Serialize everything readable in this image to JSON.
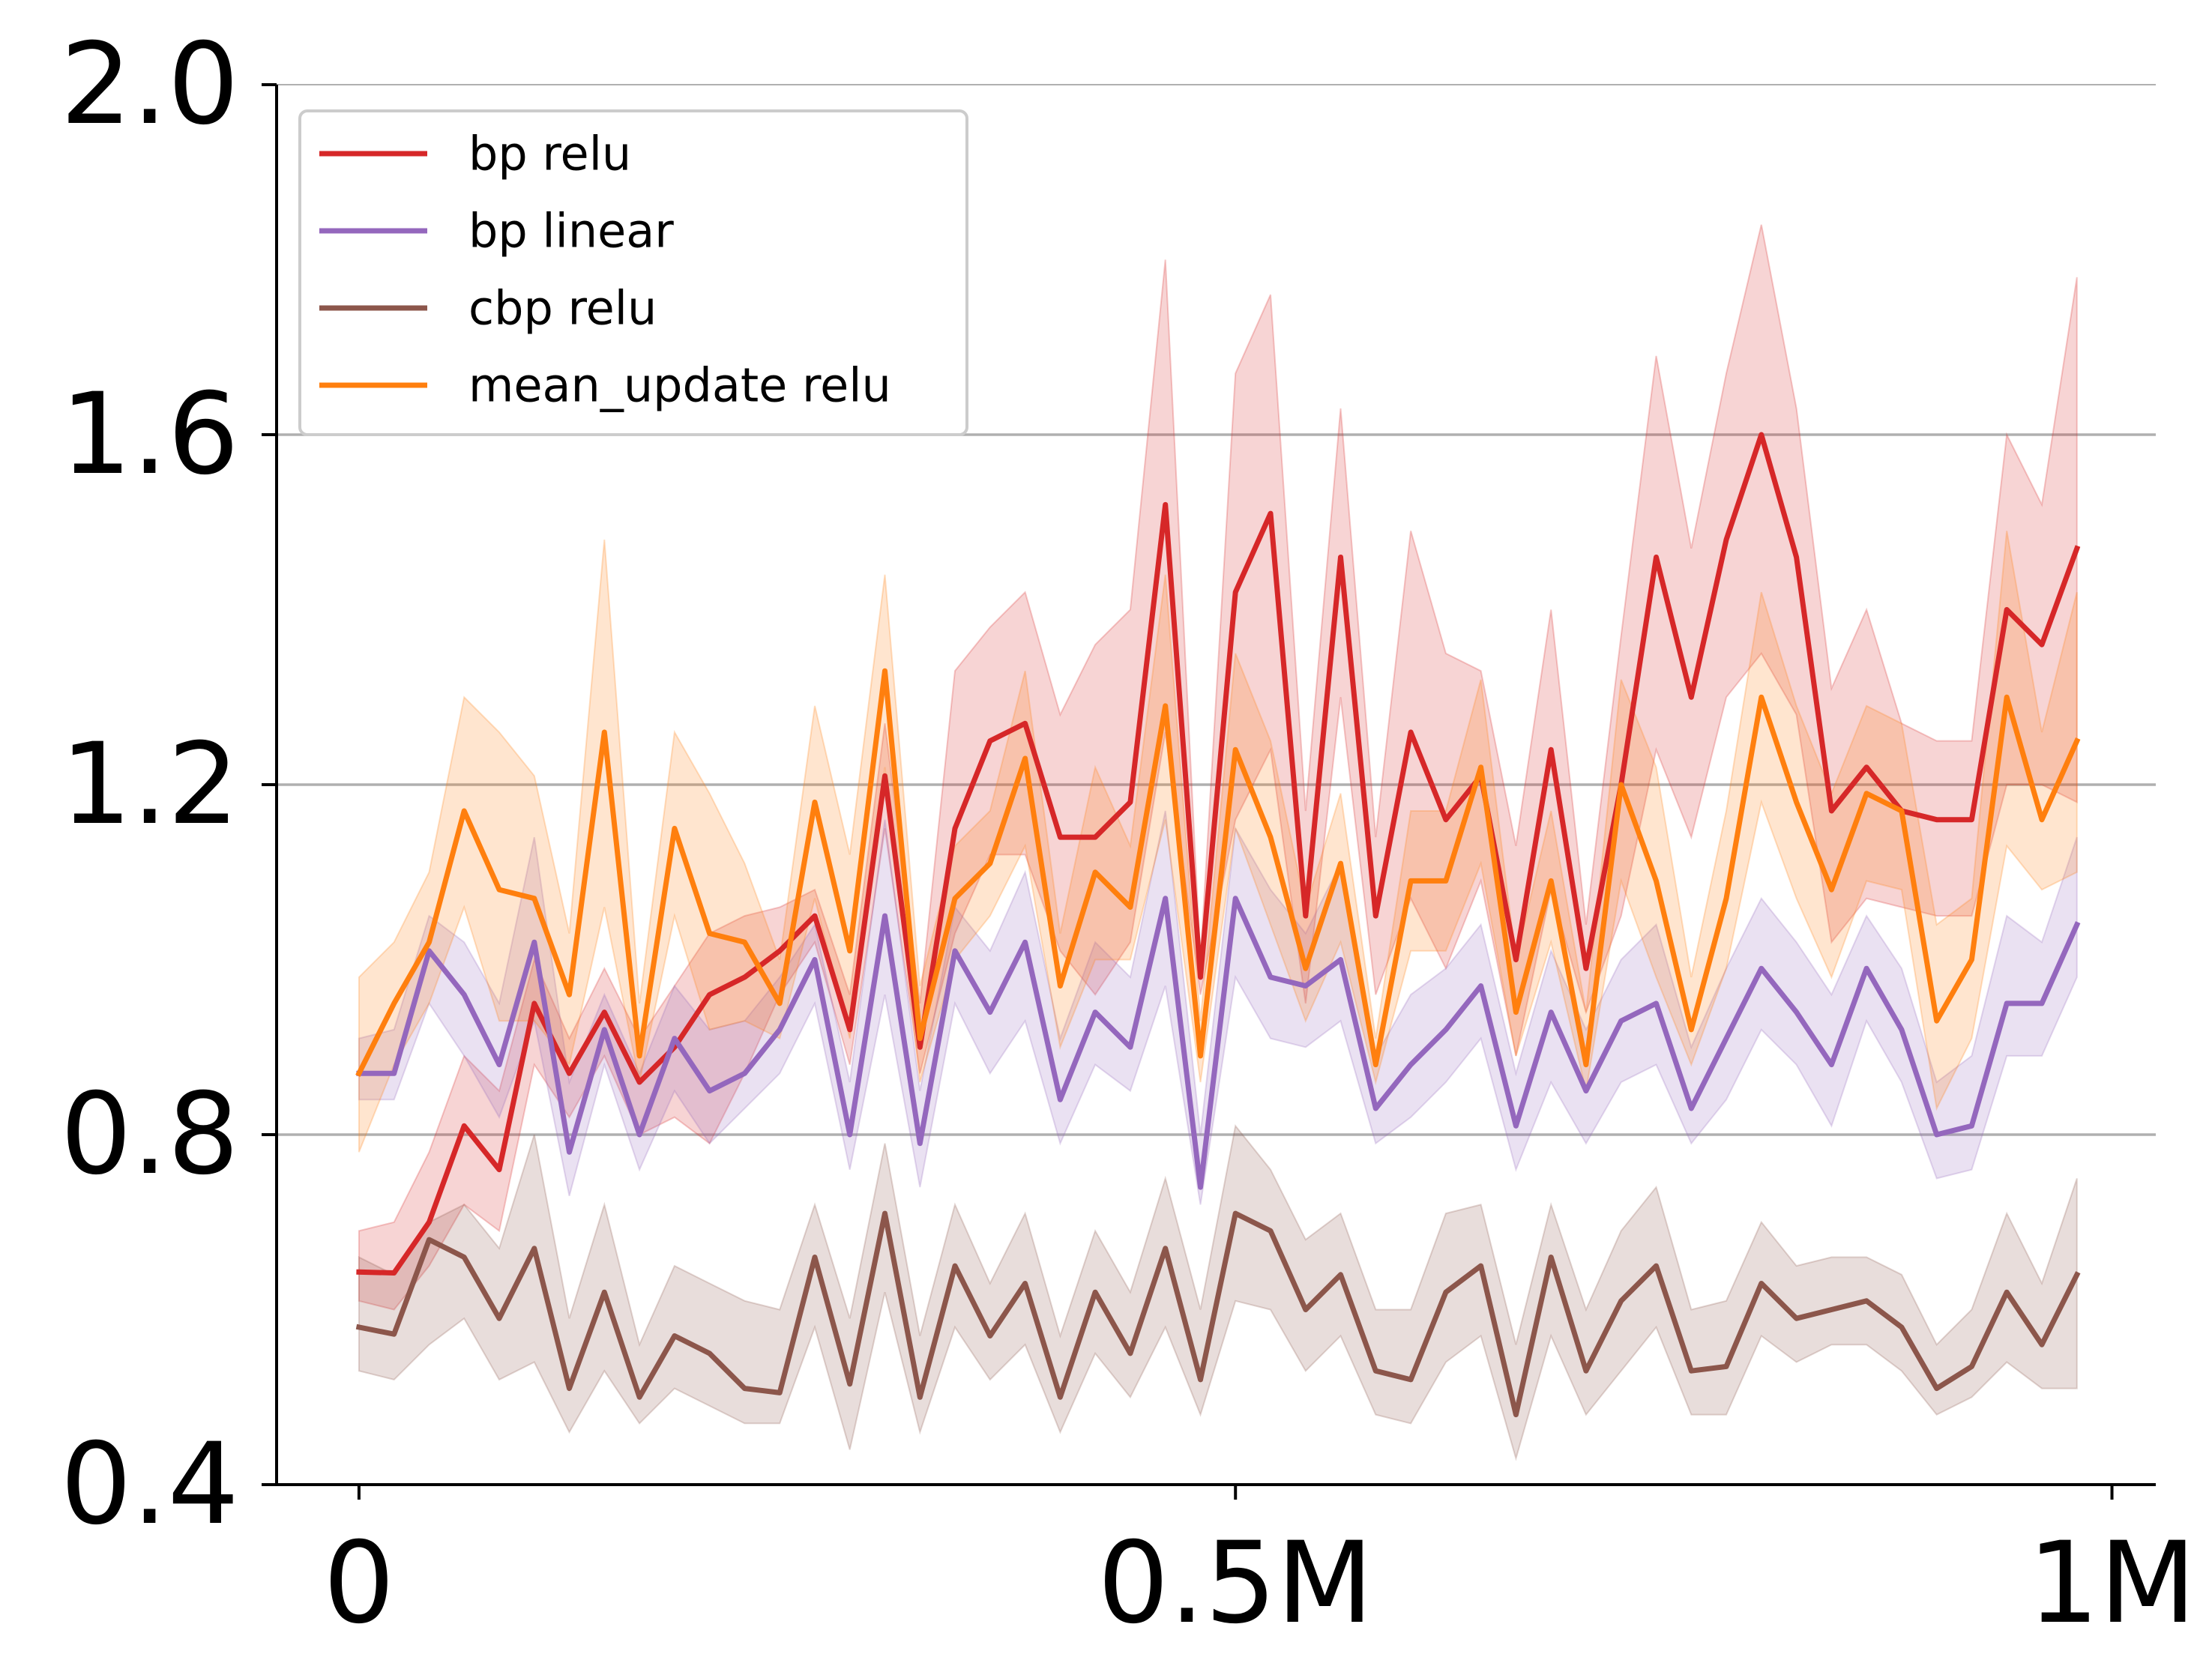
{
  "chart_data": {
    "type": "line",
    "title": "",
    "xlabel": "",
    "ylabel": "",
    "xlim": [
      -47000,
      1025000
    ],
    "ylim": [
      0.4,
      2.0
    ],
    "grid": "horizontal",
    "legend_placement": "upper-left",
    "x_ticks": [
      {
        "value": 0,
        "label": "0"
      },
      {
        "value": 500000,
        "label": "0.5M"
      },
      {
        "value": 1000000,
        "label": "1M"
      }
    ],
    "y_ticks": [
      {
        "value": 0.4,
        "label": "0.4"
      },
      {
        "value": 0.8,
        "label": "0.8"
      },
      {
        "value": 1.2,
        "label": "1.2"
      },
      {
        "value": 1.6,
        "label": "1.6"
      },
      {
        "value": 2.0,
        "label": "2.0"
      }
    ],
    "x": [
      0,
      20000,
      40000,
      60000,
      80000,
      100000,
      120000,
      140000,
      160000,
      180000,
      200000,
      220000,
      240000,
      260000,
      280000,
      300000,
      320000,
      340000,
      360000,
      380000,
      400000,
      420000,
      440000,
      460000,
      480000,
      500000,
      520000,
      540000,
      560000,
      580000,
      600000,
      620000,
      640000,
      660000,
      680000,
      700000,
      720000,
      740000,
      760000,
      780000,
      800000,
      820000,
      840000,
      860000,
      880000,
      900000,
      920000,
      940000,
      960000,
      980000
    ],
    "series": [
      {
        "name": "bp relu",
        "color": "#d62728",
        "values": [
          0.643,
          0.642,
          0.7,
          0.81,
          0.76,
          0.95,
          0.87,
          0.94,
          0.86,
          0.9,
          0.96,
          0.98,
          1.01,
          1.05,
          0.92,
          1.21,
          0.9,
          1.15,
          1.25,
          1.27,
          1.14,
          1.14,
          1.18,
          1.52,
          0.98,
          1.42,
          1.51,
          1.05,
          1.46,
          1.05,
          1.26,
          1.16,
          1.21,
          1.0,
          1.24,
          0.99,
          1.2,
          1.46,
          1.3,
          1.48,
          1.6,
          1.46,
          1.17,
          1.22,
          1.17,
          1.16,
          1.16,
          1.4,
          1.36,
          1.47
        ],
        "upper": [
          0.69,
          0.7,
          0.78,
          0.89,
          0.85,
          1.0,
          0.91,
          0.99,
          0.91,
          0.97,
          1.03,
          1.05,
          1.06,
          1.08,
          0.96,
          1.27,
          0.95,
          1.33,
          1.38,
          1.42,
          1.28,
          1.36,
          1.4,
          1.8,
          1.0,
          1.67,
          1.76,
          1.17,
          1.63,
          1.14,
          1.49,
          1.35,
          1.33,
          1.13,
          1.4,
          1.04,
          1.37,
          1.69,
          1.47,
          1.67,
          1.84,
          1.63,
          1.31,
          1.4,
          1.27,
          1.25,
          1.25,
          1.6,
          1.52,
          1.78
        ],
        "lower": [
          0.61,
          0.6,
          0.65,
          0.72,
          0.69,
          0.88,
          0.82,
          0.89,
          0.8,
          0.82,
          0.79,
          0.87,
          0.96,
          1.02,
          0.88,
          1.15,
          0.87,
          1.03,
          1.12,
          1.12,
          1.01,
          0.96,
          1.02,
          1.26,
          0.96,
          1.16,
          1.24,
          0.95,
          1.3,
          0.96,
          1.07,
          0.99,
          1.09,
          0.89,
          1.08,
          0.94,
          1.05,
          1.24,
          1.14,
          1.3,
          1.35,
          1.28,
          1.02,
          1.07,
          1.06,
          1.05,
          1.05,
          1.2,
          1.2,
          1.18
        ]
      },
      {
        "name": "bp linear",
        "color": "#9467bd",
        "values": [
          0.87,
          0.87,
          1.01,
          0.96,
          0.88,
          1.02,
          0.78,
          0.92,
          0.8,
          0.91,
          0.85,
          0.87,
          0.92,
          1.0,
          0.8,
          1.05,
          0.79,
          1.01,
          0.94,
          1.02,
          0.84,
          0.94,
          0.9,
          1.07,
          0.74,
          1.07,
          0.98,
          0.97,
          1.0,
          0.83,
          0.88,
          0.92,
          0.97,
          0.81,
          0.94,
          0.85,
          0.93,
          0.95,
          0.83,
          0.91,
          0.99,
          0.94,
          0.88,
          0.99,
          0.92,
          0.8,
          0.81,
          0.95,
          0.95,
          1.04
        ],
        "upper": [
          0.91,
          0.92,
          1.05,
          1.02,
          0.95,
          1.14,
          0.86,
          0.96,
          0.87,
          0.97,
          0.92,
          0.93,
          0.98,
          1.04,
          0.86,
          1.16,
          0.85,
          1.06,
          1.01,
          1.1,
          0.91,
          1.02,
          0.98,
          1.17,
          0.8,
          1.15,
          1.08,
          1.03,
          1.11,
          0.89,
          0.96,
          0.99,
          1.04,
          0.87,
          1.01,
          0.92,
          1.0,
          1.04,
          0.9,
          0.99,
          1.07,
          1.02,
          0.96,
          1.05,
          0.99,
          0.86,
          0.89,
          1.05,
          1.02,
          1.14
        ],
        "lower": [
          0.84,
          0.84,
          0.95,
          0.89,
          0.82,
          0.93,
          0.73,
          0.88,
          0.76,
          0.85,
          0.79,
          0.83,
          0.87,
          0.95,
          0.76,
          0.96,
          0.74,
          0.95,
          0.87,
          0.93,
          0.79,
          0.88,
          0.85,
          0.97,
          0.72,
          0.98,
          0.91,
          0.9,
          0.93,
          0.79,
          0.82,
          0.86,
          0.91,
          0.76,
          0.86,
          0.79,
          0.86,
          0.88,
          0.79,
          0.84,
          0.92,
          0.88,
          0.81,
          0.93,
          0.86,
          0.75,
          0.76,
          0.89,
          0.89,
          0.98
        ]
      },
      {
        "name": "cbp relu",
        "color": "#8c564b",
        "values": [
          0.58,
          0.572,
          0.68,
          0.66,
          0.59,
          0.67,
          0.51,
          0.62,
          0.5,
          0.57,
          0.55,
          0.51,
          0.505,
          0.66,
          0.515,
          0.71,
          0.5,
          0.65,
          0.57,
          0.63,
          0.5,
          0.62,
          0.55,
          0.67,
          0.52,
          0.71,
          0.69,
          0.6,
          0.64,
          0.53,
          0.52,
          0.62,
          0.65,
          0.48,
          0.66,
          0.53,
          0.61,
          0.65,
          0.53,
          0.535,
          0.63,
          0.59,
          0.6,
          0.61,
          0.58,
          0.51,
          0.535,
          0.62,
          0.56,
          0.64
        ],
        "upper": [
          0.66,
          0.64,
          0.7,
          0.72,
          0.67,
          0.8,
          0.59,
          0.72,
          0.56,
          0.65,
          0.63,
          0.61,
          0.6,
          0.72,
          0.59,
          0.79,
          0.57,
          0.72,
          0.63,
          0.71,
          0.57,
          0.69,
          0.62,
          0.75,
          0.6,
          0.81,
          0.76,
          0.68,
          0.71,
          0.6,
          0.6,
          0.71,
          0.72,
          0.56,
          0.72,
          0.6,
          0.69,
          0.74,
          0.6,
          0.61,
          0.7,
          0.65,
          0.66,
          0.66,
          0.64,
          0.56,
          0.6,
          0.71,
          0.63,
          0.75
        ],
        "lower": [
          0.53,
          0.52,
          0.56,
          0.59,
          0.52,
          0.54,
          0.46,
          0.53,
          0.47,
          0.51,
          0.49,
          0.47,
          0.47,
          0.58,
          0.44,
          0.62,
          0.46,
          0.58,
          0.52,
          0.56,
          0.46,
          0.55,
          0.5,
          0.58,
          0.48,
          0.61,
          0.6,
          0.53,
          0.57,
          0.48,
          0.47,
          0.54,
          0.57,
          0.43,
          0.57,
          0.48,
          0.53,
          0.58,
          0.48,
          0.48,
          0.57,
          0.54,
          0.56,
          0.56,
          0.53,
          0.48,
          0.5,
          0.54,
          0.51,
          0.51
        ]
      },
      {
        "name": "mean_update relu",
        "color": "#ff7f0e",
        "values": [
          0.87,
          0.95,
          1.02,
          1.17,
          1.08,
          1.07,
          0.96,
          1.26,
          0.89,
          1.15,
          1.03,
          1.02,
          0.95,
          1.18,
          1.01,
          1.33,
          0.91,
          1.07,
          1.11,
          1.23,
          0.97,
          1.1,
          1.06,
          1.29,
          0.89,
          1.24,
          1.14,
          0.99,
          1.11,
          0.88,
          1.09,
          1.09,
          1.22,
          0.94,
          1.09,
          0.88,
          1.2,
          1.09,
          0.92,
          1.07,
          1.3,
          1.18,
          1.08,
          1.19,
          1.17,
          0.93,
          1.0,
          1.3,
          1.16,
          1.25
        ],
        "upper": [
          0.98,
          1.02,
          1.1,
          1.3,
          1.26,
          1.21,
          1.03,
          1.48,
          0.95,
          1.26,
          1.19,
          1.11,
          1.0,
          1.29,
          1.12,
          1.44,
          0.97,
          1.13,
          1.17,
          1.33,
          1.03,
          1.22,
          1.13,
          1.44,
          0.93,
          1.35,
          1.25,
          1.06,
          1.19,
          0.91,
          1.17,
          1.17,
          1.32,
          1.0,
          1.17,
          0.94,
          1.32,
          1.22,
          0.98,
          1.17,
          1.42,
          1.29,
          1.19,
          1.29,
          1.27,
          1.04,
          1.07,
          1.49,
          1.26,
          1.42
        ],
        "lower": [
          0.78,
          0.88,
          0.95,
          1.06,
          0.93,
          0.93,
          0.88,
          1.06,
          0.86,
          1.05,
          0.92,
          0.93,
          0.91,
          1.07,
          0.91,
          1.22,
          0.86,
          1.0,
          1.05,
          1.13,
          0.9,
          1.0,
          1.0,
          1.16,
          0.86,
          1.15,
          1.04,
          0.93,
          1.02,
          0.86,
          1.01,
          1.01,
          1.11,
          0.89,
          1.02,
          0.85,
          1.09,
          0.98,
          0.88,
          0.99,
          1.18,
          1.07,
          0.98,
          1.09,
          1.08,
          0.83,
          0.91,
          1.13,
          1.08,
          1.1
        ]
      }
    ]
  }
}
